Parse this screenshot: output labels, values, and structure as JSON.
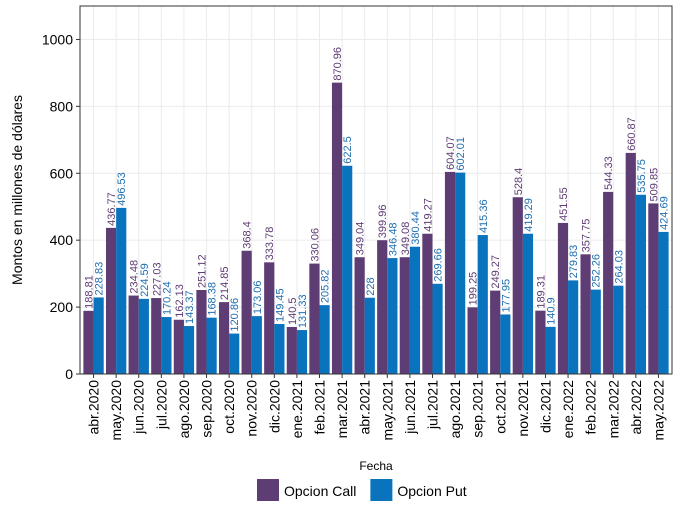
{
  "chart_data": {
    "type": "grouped_bar",
    "x_label": "Fecha",
    "y_label": "Montos en millones de dólares",
    "categories": [
      "abr.2020",
      "may.2020",
      "jun.2020",
      "jul.2020",
      "ago.2020",
      "sep.2020",
      "oct.2020",
      "nov.2020",
      "dic.2020",
      "ene.2021",
      "feb.2021",
      "mar.2021",
      "abr.2021",
      "may.2021",
      "jun.2021",
      "jul.2021",
      "ago.2021",
      "sep.2021",
      "oct.2021",
      "nov.2021",
      "dic.2021",
      "ene.2022",
      "feb.2022",
      "mar.2022",
      "abr.2022",
      "may.2022"
    ],
    "series": [
      {
        "name": "Opcion Call",
        "color": "#5e3c74",
        "label_color": "#5e3c74",
        "values": [
          188.81,
          436.77,
          234.48,
          227.03,
          162.13,
          251.12,
          214.85,
          368.4,
          333.78,
          140.5,
          330.06,
          870.96,
          349.04,
          399.96,
          349.08,
          419.27,
          604.07,
          199.25,
          249.27,
          528.4,
          189.31,
          451.55,
          357.75,
          544.33,
          660.87,
          509.85
        ]
      },
      {
        "name": "Opcion Put",
        "color": "#0a73be",
        "label_color": "#1f6fb0",
        "values": [
          228.83,
          496.53,
          224.59,
          170.24,
          143.37,
          168.38,
          120.86,
          173.06,
          149.45,
          131.33,
          205.82,
          622.5,
          228,
          346.48,
          380.44,
          269.66,
          602.01,
          415.36,
          177.95,
          419.29,
          140.9,
          279.83,
          252.26,
          264.03,
          535.75,
          424.69
        ]
      }
    ],
    "ylim": [
      0,
      1100
    ],
    "yticks": [
      0,
      200,
      400,
      600,
      800,
      1000
    ],
    "grid": true,
    "legend": "bottom"
  }
}
